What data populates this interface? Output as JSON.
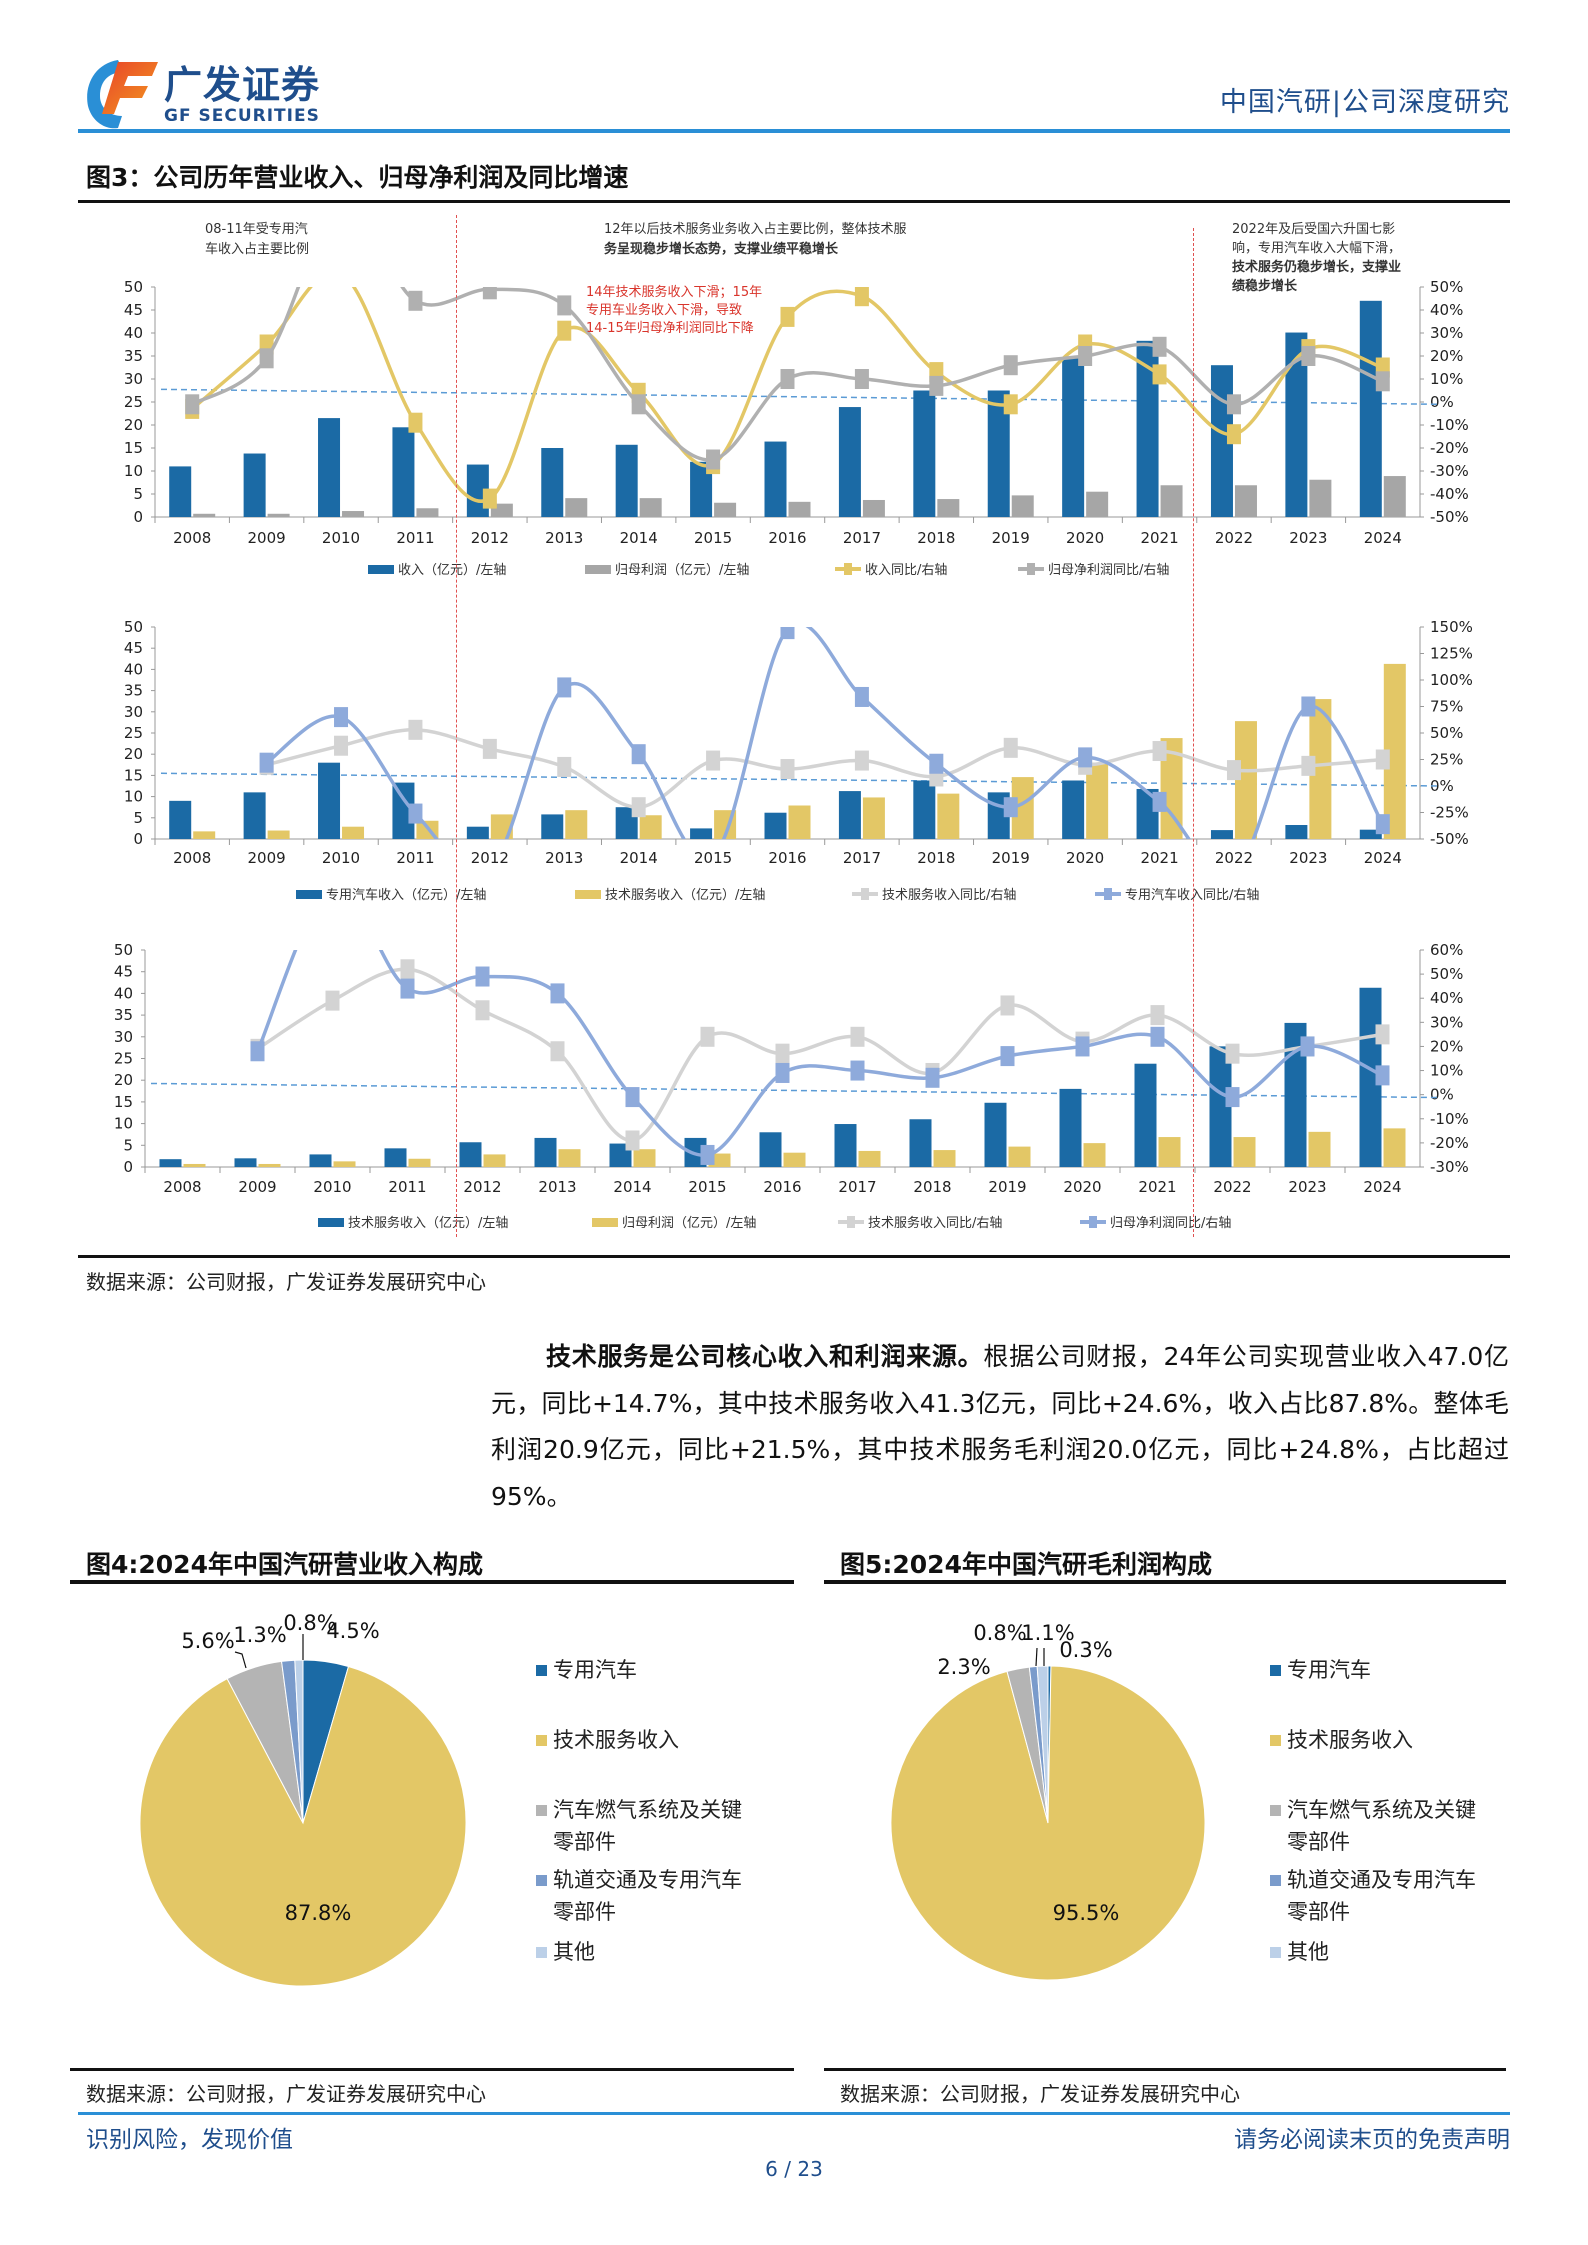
{
  "header": {
    "logo_cn": "广发证券",
    "logo_en": "GF SECURITIES",
    "report_label": "中国汽研|公司深度研究"
  },
  "figure3": {
    "title": "图3：公司历年营业收入、归母净利润及同比增速",
    "source": "数据来源：公司财报，广发证券发展研究中心",
    "annotations": [
      {
        "lines": [
          "08-11年受专用汽",
          "车收入占主要比例"
        ],
        "color": "#333333"
      },
      {
        "lines": [
          "12年以后技术服务业务收入占主要比例，整体技术服",
          "务呈现稳步增长态势，支撑业绩平稳增长"
        ],
        "color": "#333333"
      },
      {
        "lines": [
          "2022年及后受国六升国七影",
          "响，专用汽车收入大幅下滑，",
          "技术服务仍稳步增长，支撑业",
          "绩稳步增长"
        ],
        "color": "#333333"
      },
      {
        "lines": [
          "14年技术服务收入下滑；15年",
          "专用车业务收入下滑，导致",
          "14-15年归母净利润同比下降"
        ],
        "color": "#d9342b"
      }
    ]
  },
  "chart_data": [
    {
      "type": "bar+line",
      "categories": [
        "2008",
        "2009",
        "2010",
        "2011",
        "2012",
        "2013",
        "2014",
        "2015",
        "2016",
        "2017",
        "2018",
        "2019",
        "2020",
        "2021",
        "2022",
        "2023",
        "2024"
      ],
      "left_axis": {
        "min": 0,
        "max": 50,
        "step": 5,
        "ticks": [
          "0",
          "5",
          "10",
          "15",
          "20",
          "25",
          "30",
          "35",
          "40",
          "45",
          "50"
        ]
      },
      "right_axis": {
        "min": -0.5,
        "max": 0.5,
        "ticks": [
          "-50%",
          "-40%",
          "-30%",
          "-20%",
          "-10%",
          "0%",
          "10%",
          "20%",
          "30%",
          "40%",
          "50%"
        ]
      },
      "series": [
        {
          "name": "收入（亿元）/左轴",
          "kind": "bar",
          "axis": "left",
          "color": "#1b6aa5",
          "values": [
            11.0,
            13.8,
            21.5,
            19.5,
            11.4,
            15.0,
            15.7,
            12.0,
            16.4,
            23.9,
            27.5,
            27.5,
            34.5,
            38.3,
            33.0,
            40.1,
            47.0
          ]
        },
        {
          "name": "归母利润（亿元）/左轴",
          "kind": "bar",
          "axis": "left",
          "color": "#a6a6a6",
          "values": [
            0.7,
            0.7,
            1.3,
            1.9,
            2.9,
            4.1,
            4.1,
            3.1,
            3.3,
            3.7,
            3.9,
            4.7,
            5.5,
            6.9,
            6.9,
            8.1,
            8.9
          ]
        },
        {
          "name": "收入同比/右轴",
          "kind": "line",
          "axis": "right",
          "color": "#e3c766",
          "values": [
            -0.03,
            0.25,
            0.56,
            -0.09,
            -0.42,
            0.31,
            0.04,
            -0.27,
            0.37,
            0.46,
            0.13,
            -0.01,
            0.25,
            0.12,
            -0.14,
            0.23,
            0.15
          ]
        },
        {
          "name": "归母净利润同比/右轴",
          "kind": "line",
          "axis": "right",
          "color": "#b0b0b0",
          "values": [
            -0.01,
            0.19,
            0.86,
            0.44,
            0.49,
            0.42,
            -0.01,
            -0.25,
            0.1,
            0.1,
            0.07,
            0.16,
            0.2,
            0.24,
            -0.01,
            0.2,
            0.09
          ]
        }
      ]
    },
    {
      "type": "bar+line",
      "categories": [
        "2008",
        "2009",
        "2010",
        "2011",
        "2012",
        "2013",
        "2014",
        "2015",
        "2016",
        "2017",
        "2018",
        "2019",
        "2020",
        "2021",
        "2022",
        "2023",
        "2024"
      ],
      "left_axis": {
        "min": 0,
        "max": 50,
        "step": 5,
        "ticks": [
          "0",
          "5",
          "10",
          "15",
          "20",
          "25",
          "30",
          "35",
          "40",
          "45",
          "50"
        ]
      },
      "right_axis": {
        "min": -0.5,
        "max": 1.5,
        "ticks": [
          "-50%",
          "-25%",
          "0%",
          "25%",
          "50%",
          "75%",
          "100%",
          "125%",
          "150%"
        ]
      },
      "series": [
        {
          "name": "专用汽车收入（亿元）/左轴",
          "kind": "bar",
          "axis": "left",
          "color": "#1b6aa5",
          "values": [
            9.0,
            11.0,
            18.0,
            13.3,
            2.9,
            5.8,
            7.5,
            2.5,
            6.2,
            11.3,
            13.8,
            11.0,
            13.8,
            11.8,
            2.1,
            3.3,
            2.2
          ]
        },
        {
          "name": "技术服务收入（亿元）/左轴",
          "kind": "bar",
          "axis": "left",
          "color": "#e3c766",
          "values": [
            1.8,
            2.0,
            2.9,
            4.3,
            5.8,
            6.8,
            5.6,
            6.8,
            7.9,
            9.8,
            10.7,
            14.6,
            18.0,
            23.8,
            27.8,
            33.0,
            41.3
          ]
        },
        {
          "name": "技术服务收入同比/右轴",
          "kind": "line",
          "axis": "right",
          "color": "#d3d3d3",
          "values": [
            null,
            0.2,
            0.38,
            0.53,
            0.35,
            0.18,
            -0.2,
            0.24,
            0.16,
            0.24,
            0.09,
            0.36,
            0.2,
            0.33,
            0.15,
            0.19,
            0.25
          ]
        },
        {
          "name": "专用汽车收入同比/右轴",
          "kind": "line",
          "axis": "right",
          "color": "#8eaadb",
          "values": [
            null,
            0.22,
            0.65,
            -0.26,
            -0.78,
            0.93,
            0.3,
            -0.67,
            1.48,
            0.84,
            0.21,
            -0.2,
            0.27,
            -0.15,
            -0.82,
            0.75,
            -0.36
          ]
        }
      ]
    },
    {
      "type": "bar+line",
      "categories": [
        "2008",
        "2009",
        "2010",
        "2011",
        "2012",
        "2013",
        "2014",
        "2015",
        "2016",
        "2017",
        "2018",
        "2019",
        "2020",
        "2021",
        "2022",
        "2023",
        "2024"
      ],
      "left_axis": {
        "min": 0,
        "max": 50,
        "step": 5,
        "ticks": [
          "0",
          "5",
          "10",
          "15",
          "20",
          "25",
          "30",
          "35",
          "40",
          "45",
          "50"
        ]
      },
      "right_axis": {
        "min": -0.3,
        "max": 0.6,
        "ticks": [
          "-30%",
          "-20%",
          "-10%",
          "0%",
          "10%",
          "20%",
          "30%",
          "40%",
          "50%",
          "60%"
        ]
      },
      "series": [
        {
          "name": "技术服务收入（亿元）/左轴",
          "kind": "bar",
          "axis": "left",
          "color": "#1b6aa5",
          "values": [
            1.8,
            2.0,
            2.9,
            4.3,
            5.7,
            6.7,
            5.4,
            6.7,
            8.0,
            9.9,
            11.0,
            14.8,
            18.0,
            23.8,
            27.8,
            33.2,
            41.3
          ]
        },
        {
          "name": "归母利润（亿元）/左轴",
          "kind": "bar",
          "axis": "left",
          "color": "#e3c766",
          "values": [
            0.7,
            0.7,
            1.3,
            1.9,
            2.9,
            4.1,
            4.1,
            3.1,
            3.3,
            3.7,
            3.9,
            4.7,
            5.5,
            6.9,
            6.9,
            8.1,
            8.9
          ]
        },
        {
          "name": "技术服务收入同比/右轴",
          "kind": "line",
          "axis": "right",
          "color": "#d3d3d3",
          "values": [
            null,
            0.19,
            0.39,
            0.52,
            0.35,
            0.18,
            -0.19,
            0.24,
            0.17,
            0.24,
            0.09,
            0.37,
            0.22,
            0.33,
            0.17,
            0.2,
            0.25
          ]
        },
        {
          "name": "归母净利润同比/右轴",
          "kind": "line",
          "axis": "right",
          "color": "#8eaadb",
          "values": [
            null,
            0.18,
            0.86,
            0.44,
            0.49,
            0.42,
            -0.01,
            -0.25,
            0.09,
            0.1,
            0.07,
            0.16,
            0.2,
            0.24,
            -0.01,
            0.2,
            0.08
          ]
        }
      ]
    },
    {
      "type": "pie",
      "title": "图4:2024年中国汽研营业收入构成",
      "slices": [
        {
          "label": "专用汽车",
          "value": 4.5,
          "value_label": "4.5%",
          "color": "#1b6aa5"
        },
        {
          "label": "技术服务收入",
          "value": 87.8,
          "value_label": "87.8%",
          "color": "#e3c766"
        },
        {
          "label": "汽车燃气系统及关键零部件",
          "value": 5.6,
          "value_label": "5.6%",
          "color": "#b4b4b4"
        },
        {
          "label": "轨道交通及专用汽车零部件",
          "value": 1.3,
          "value_label": "1.3%",
          "color": "#7a9bcb"
        },
        {
          "label": "其他",
          "value": 0.8,
          "value_label": "0.8%",
          "color": "#bcd0e8"
        }
      ],
      "legend_position": "right"
    },
    {
      "type": "pie",
      "title": "图5:2024年中国汽研毛利润构成",
      "slices": [
        {
          "label": "专用汽车",
          "value": 0.3,
          "value_label": "0.3%",
          "color": "#1b6aa5"
        },
        {
          "label": "技术服务收入",
          "value": 95.5,
          "value_label": "95.5%",
          "color": "#e3c766"
        },
        {
          "label": "汽车燃气系统及关键零部件",
          "value": 2.3,
          "value_label": "2.3%",
          "color": "#b4b4b4"
        },
        {
          "label": "轨道交通及专用汽车零部件",
          "value": 0.8,
          "value_label": "0.8%",
          "color": "#7a9bcb"
        },
        {
          "label": "其他",
          "value": 1.1,
          "value_label": "1.1%",
          "color": "#bcd0e8"
        }
      ],
      "legend_position": "right"
    }
  ],
  "paragraph": {
    "bold": "技术服务是公司核心收入和利润来源。",
    "text": "根据公司财报，24年公司实现营业收入47.0亿元，同比+14.7%，其中技术服务收入41.3亿元，同比+24.6%，收入占比87.8%。整体毛利润20.9亿元，同比+21.5%，其中技术服务毛利润20.0亿元，同比+24.8%，占比超过95%。"
  },
  "figure4": {
    "source": "数据来源：公司财报，广发证券发展研究中心"
  },
  "figure5": {
    "source": "数据来源：公司财报，广发证券发展研究中心"
  },
  "footer": {
    "left": "识别风险，发现价值",
    "right": "请务必阅读末页的免责声明",
    "page": "6 / 23"
  }
}
